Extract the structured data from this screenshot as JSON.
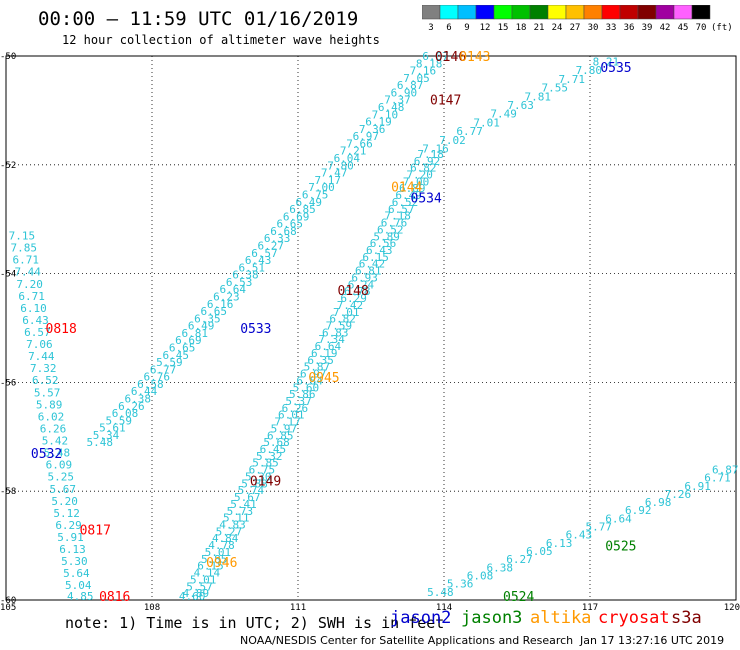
{
  "header": {
    "title": "00:00 – 11:59 UTC 01/16/2019",
    "subtitle": "12 hour collection of altimeter wave heights"
  },
  "legend": {
    "unit": "(ft)",
    "bins": [
      {
        "label": "3",
        "color": "#808080"
      },
      {
        "label": "6",
        "color": "#00ffff"
      },
      {
        "label": "9",
        "color": "#00bfff"
      },
      {
        "label": "12",
        "color": "#0000ff"
      },
      {
        "label": "15",
        "color": "#00ff00"
      },
      {
        "label": "18",
        "color": "#00c000"
      },
      {
        "label": "21",
        "color": "#008000"
      },
      {
        "label": "24",
        "color": "#ffff00"
      },
      {
        "label": "27",
        "color": "#ffc000"
      },
      {
        "label": "30",
        "color": "#ff8000"
      },
      {
        "label": "33",
        "color": "#ff0000"
      },
      {
        "label": "36",
        "color": "#c00000"
      },
      {
        "label": "39",
        "color": "#800000"
      },
      {
        "label": "42",
        "color": "#a000a0"
      },
      {
        "label": "45",
        "color": "#ff60ff"
      },
      {
        "label": "70",
        "color": "#000000"
      }
    ]
  },
  "map": {
    "lon_range": [
      105,
      120
    ],
    "lat_range": [
      -60,
      -50
    ],
    "x_ticks": [
      "105",
      "108",
      "111",
      "114",
      "117",
      "120"
    ],
    "y_ticks": [
      "-50",
      "-52",
      "-54",
      "-56",
      "-58",
      "-60"
    ],
    "grid": true,
    "swh_color": "#2ec4d6",
    "tracks": [
      {
        "values": [
          "7.15",
          "7.85",
          "6.71",
          "7.44",
          "7.20",
          "6.71",
          "6.10",
          "6.43",
          "6.57",
          "7.06",
          "7.44",
          "7.32",
          "6.52",
          "5.57",
          "5.89",
          "6.02",
          "6.26",
          "5.42",
          "5.48",
          "6.09",
          "5.25",
          "5.67",
          "5.20",
          "5.12",
          "6.29",
          "5.91",
          "6.13",
          "5.30",
          "5.64",
          "5.04",
          "4.85"
        ],
        "start": [
          105.3,
          -53.3
        ],
        "end": [
          106.5,
          -59.95
        ]
      },
      {
        "values": [
          "5.48",
          "5.34",
          "5.61",
          "5.59",
          "6.08",
          "6.26",
          "6.38",
          "6.44",
          "6.58",
          "6.76",
          "6.77",
          "5.59",
          "6.45",
          "6.65",
          "6.69",
          "6.81",
          "6.49",
          "6.35",
          "6.65",
          "6.16",
          "6.23",
          "6.64",
          "6.53",
          "6.38",
          "6.51",
          "6.43",
          "6.57",
          "6.27",
          "6.33",
          "6.68",
          "6.65",
          "6.69",
          "6.85",
          "6.49",
          "6.75",
          "7.00",
          "7.17",
          "7.47",
          "7.80",
          "6.04",
          "7.21",
          "7.66",
          "6.97",
          "7.36",
          "6.19",
          "7.10",
          "6.48",
          "7.37",
          "6.90",
          "6.87",
          "7.05",
          "7.16",
          "8.18",
          "6.67"
        ],
        "start": [
          106.9,
          -57.1
        ],
        "end": [
          113.8,
          -50.0
        ]
      },
      {
        "values": [
          "4.60",
          "4.89",
          "5.57",
          "5.01",
          "4.14",
          "6.15",
          "5.85",
          "5.01",
          "4.78",
          "4.84",
          "5.27",
          "4.83",
          "5.11",
          "5.73",
          "5.41",
          "5.67",
          "5.74",
          "5.88",
          "5.30",
          "6.75",
          "5.85",
          "5.32",
          "6.45",
          "5.68",
          "6.85",
          "5.97",
          "7.17",
          "6.01",
          "6.26",
          "5.37",
          "5.86",
          "5.60",
          "6.84",
          "6.97",
          "5.87",
          "6.35",
          "6.19",
          "6.64",
          "7.34",
          "6.83",
          "7.59",
          "6.82",
          "7.01",
          "7.42",
          "6.29",
          "6.78",
          "6.24",
          "6.93",
          "6.81",
          "6.42",
          "6.15",
          "6.43",
          "6.56",
          "5.89",
          "6.52",
          "6.76",
          "7.18",
          "6.57",
          "6.52",
          "6.49",
          "6.89",
          "7.00",
          "7.20",
          "6.82",
          "6.92",
          "7.18"
        ],
        "start": [
          108.8,
          -60.0
        ],
        "end": [
          113.7,
          -51.8
        ]
      },
      {
        "values": [
          "5.48",
          "5.36",
          "6.08",
          "6.38",
          "6.27",
          "6.05",
          "6.13",
          "6.43",
          "5.77",
          "6.64",
          "6.92",
          "6.98",
          "7.26",
          "6.91",
          "6.71",
          "6.87"
        ],
        "start": [
          113.9,
          -59.85
        ],
        "end": [
          120.0,
          -57.6
        ]
      },
      {
        "values": [
          "7.16",
          "7.02",
          "6.77",
          "7.01",
          "7.49",
          "7.63",
          "7.81",
          "7.55",
          "7.71",
          "7.80",
          "8.21"
        ],
        "start": [
          113.8,
          -51.7
        ],
        "end": [
          117.3,
          -50.1
        ]
      }
    ],
    "labels": [
      {
        "text": "0818",
        "lon": 106.1,
        "lat": -55.0,
        "color": "#ff0000"
      },
      {
        "text": "0532",
        "lon": 105.8,
        "lat": -57.3,
        "color": "#0000cc"
      },
      {
        "text": "0817",
        "lon": 106.8,
        "lat": -58.7,
        "color": "#ff0000"
      },
      {
        "text": "0816",
        "lon": 107.2,
        "lat": -60.0,
        "color": "#ff0000"
      },
      {
        "text": "0533",
        "lon": 110.1,
        "lat": -55.0,
        "color": "#0000cc"
      },
      {
        "text": "0148",
        "lon": 112.1,
        "lat": -54.3,
        "color": "#800000"
      },
      {
        "text": "0945",
        "lon": 111.5,
        "lat": -55.9,
        "color": "#ff9900"
      },
      {
        "text": "0149",
        "lon": 110.3,
        "lat": -57.8,
        "color": "#800000"
      },
      {
        "text": "0946",
        "lon": 109.4,
        "lat": -59.3,
        "color": "#ff9900"
      },
      {
        "text": "0146",
        "lon": 114.1,
        "lat": -50.0,
        "color": "#800000"
      },
      {
        "text": "0143",
        "lon": 114.6,
        "lat": -50.0,
        "color": "#ff9900"
      },
      {
        "text": "0147",
        "lon": 114.0,
        "lat": -50.8,
        "color": "#800000"
      },
      {
        "text": "0144",
        "lon": 113.2,
        "lat": -52.4,
        "color": "#ff9900"
      },
      {
        "text": "0534",
        "lon": 113.6,
        "lat": -52.6,
        "color": "#0000cc"
      },
      {
        "text": "0535",
        "lon": 117.5,
        "lat": -50.2,
        "color": "#0000cc"
      },
      {
        "text": "0525",
        "lon": 117.6,
        "lat": -59.0,
        "color": "#008000"
      },
      {
        "text": "0524",
        "lon": 115.5,
        "lat": -59.95,
        "color": "#008000"
      }
    ]
  },
  "footer": {
    "note": "note: 1) Time is in UTC; 2) SWH is in feet",
    "satellites": [
      {
        "name": "jason2",
        "color": "#0000cc"
      },
      {
        "name": "jason3",
        "color": "#008000"
      },
      {
        "name": "altika",
        "color": "#ff9900"
      },
      {
        "name": "cryosat",
        "color": "#ff0000"
      },
      {
        "name": "s3a",
        "color": "#800000"
      }
    ],
    "credit": "NOAA/NESDIS Center for Satellite Applications and Research",
    "timestamp": "Jan 17 13:27:16 UTC 2019"
  }
}
